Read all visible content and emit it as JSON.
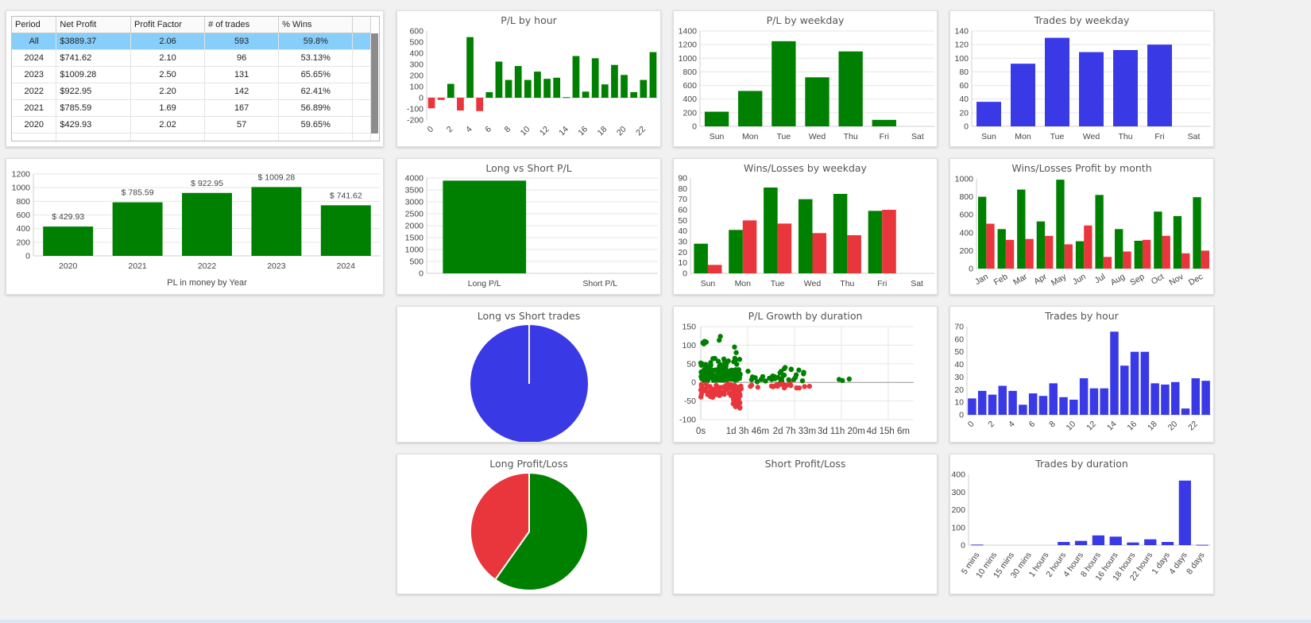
{
  "table": {
    "headers": [
      "Period",
      "Net Profit",
      "Profit Factor",
      "# of trades",
      "% Wins"
    ],
    "rows": [
      [
        "All",
        "$3889.37",
        "2.06",
        "593",
        "59.8%"
      ],
      [
        "2024",
        "$741.62",
        "2.10",
        "96",
        "53.13%"
      ],
      [
        "2023",
        "$1009.28",
        "2.50",
        "131",
        "65.65%"
      ],
      [
        "2022",
        "$922.95",
        "2.20",
        "142",
        "62.41%"
      ],
      [
        "2021",
        "$785.59",
        "1.69",
        "167",
        "56.89%"
      ],
      [
        "2020",
        "$429.93",
        "2.02",
        "57",
        "59.65%"
      ]
    ],
    "selected_row": 0
  },
  "colors": {
    "green": "#008000",
    "red": "#e8363c",
    "blue": "#3939e6",
    "grid": "#e6e6e6",
    "axis": "#cfcfcf"
  },
  "chart_data": [
    {
      "id": "pl_by_hour",
      "type": "bar",
      "title": "P/L by hour",
      "x": [
        0,
        1,
        2,
        3,
        4,
        5,
        6,
        7,
        8,
        9,
        10,
        11,
        12,
        13,
        14,
        15,
        16,
        17,
        18,
        19,
        20,
        21,
        22,
        23
      ],
      "values": [
        -95,
        -20,
        125,
        -115,
        545,
        -120,
        50,
        325,
        160,
        285,
        160,
        235,
        170,
        180,
        5,
        375,
        55,
        355,
        120,
        295,
        205,
        50,
        160,
        410
      ],
      "xticks": [
        "0",
        "2",
        "4",
        "6",
        "8",
        "10",
        "12",
        "14",
        "16",
        "18",
        "20",
        "22"
      ],
      "yticks": [
        600,
        500,
        400,
        300,
        200,
        100,
        0,
        -100,
        -200
      ],
      "ylim": [
        -200,
        600
      ]
    },
    {
      "id": "pl_by_weekday",
      "type": "bar",
      "title": "P/L by weekday",
      "categories": [
        "Sun",
        "Mon",
        "Tue",
        "Wed",
        "Thu",
        "Fri",
        "Sat"
      ],
      "values": [
        215,
        520,
        1250,
        720,
        1100,
        95,
        0
      ],
      "yticks": [
        1400,
        1200,
        1000,
        800,
        600,
        400,
        200,
        0
      ],
      "ylim": [
        0,
        1400
      ]
    },
    {
      "id": "trades_by_weekday",
      "type": "bar",
      "title": "Trades by weekday",
      "categories": [
        "Sun",
        "Mon",
        "Tue",
        "Wed",
        "Thu",
        "Fri",
        "Sat"
      ],
      "values": [
        36,
        92,
        130,
        109,
        112,
        120,
        0
      ],
      "yticks": [
        140,
        120,
        100,
        80,
        60,
        40,
        20,
        0
      ],
      "ylim": [
        0,
        140
      ]
    },
    {
      "id": "pl_by_year",
      "type": "bar",
      "title": "",
      "categories": [
        "2020",
        "2021",
        "2022",
        "2023",
        "2024"
      ],
      "values": [
        429.93,
        785.59,
        922.95,
        1009.28,
        741.62
      ],
      "labels": [
        "$ 429.93",
        "$ 785.59",
        "$ 922.95",
        "$ 1009.28",
        "$ 741.62"
      ],
      "xlabel": "PL in money by Year",
      "yticks": [
        1200,
        1000,
        800,
        600,
        400,
        200,
        0
      ],
      "ylim": [
        0,
        1200
      ]
    },
    {
      "id": "long_vs_short_pl",
      "type": "bar",
      "title": "Long vs Short P/L",
      "categories": [
        "Long P/L",
        "Short P/L"
      ],
      "values": [
        3889.37,
        0
      ],
      "yticks": [
        4000,
        3500,
        3000,
        2500,
        2000,
        1500,
        1000,
        500,
        0
      ],
      "ylim": [
        0,
        4000
      ]
    },
    {
      "id": "wins_losses_weekday",
      "type": "bar",
      "title": "Wins/Losses by weekday",
      "categories": [
        "Sun",
        "Mon",
        "Tue",
        "Wed",
        "Thu",
        "Fri",
        "Sat"
      ],
      "series": [
        {
          "values": [
            28,
            41,
            81,
            70,
            75,
            59,
            0
          ]
        },
        {
          "values": [
            8,
            50,
            47,
            38,
            36,
            60,
            0
          ]
        }
      ],
      "yticks": [
        90,
        80,
        70,
        60,
        50,
        40,
        30,
        20,
        10,
        0
      ],
      "ylim": [
        0,
        90
      ]
    },
    {
      "id": "wins_losses_month",
      "type": "bar",
      "title": "Wins/Losses Profit by month",
      "categories": [
        "Jan",
        "Feb",
        "Mar",
        "Apr",
        "May",
        "Jun",
        "Jul",
        "Aug",
        "Sep",
        "Oct",
        "Nov",
        "Dec"
      ],
      "series": [
        {
          "values": [
            800,
            440,
            880,
            525,
            990,
            305,
            820,
            440,
            310,
            635,
            585,
            795
          ]
        },
        {
          "values": [
            500,
            320,
            330,
            365,
            270,
            480,
            130,
            190,
            320,
            365,
            170,
            200
          ]
        }
      ],
      "yticks": [
        1000,
        800,
        600,
        400,
        200,
        0
      ],
      "ylim": [
        0,
        1000
      ]
    },
    {
      "id": "long_vs_short_trades",
      "type": "pie",
      "title": "Long vs Short trades",
      "slices": [
        {
          "value": 593
        },
        {
          "value": 0
        }
      ]
    },
    {
      "id": "pl_growth_duration",
      "type": "scatter",
      "title": "P/L Growth by duration",
      "xticks": [
        "0s",
        "1d 3h 46m",
        "2d 7h 33m",
        "3d 11h 20m",
        "4d 15h 6m"
      ],
      "yticks": [
        150,
        100,
        50,
        0,
        -50,
        -100
      ],
      "ylim": [
        -100,
        150
      ],
      "xlim_hours": [
        0,
        111.1
      ]
    },
    {
      "id": "trades_by_hour",
      "type": "bar",
      "title": "Trades by hour",
      "x": [
        0,
        1,
        2,
        3,
        4,
        5,
        6,
        7,
        8,
        9,
        10,
        11,
        12,
        13,
        14,
        15,
        16,
        17,
        18,
        19,
        20,
        21,
        22,
        23
      ],
      "values": [
        13,
        19,
        16,
        23,
        19,
        8,
        17,
        15,
        25,
        14,
        12,
        29,
        21,
        21,
        66,
        39,
        50,
        50,
        25,
        24,
        26,
        5,
        29,
        27
      ],
      "xticks": [
        "0",
        "2",
        "4",
        "6",
        "8",
        "10",
        "12",
        "14",
        "16",
        "18",
        "20",
        "22"
      ],
      "yticks": [
        70,
        60,
        50,
        40,
        30,
        20,
        10,
        0
      ],
      "ylim": [
        0,
        70
      ]
    },
    {
      "id": "long_profit_loss",
      "type": "pie",
      "title": "Long Profit/Loss",
      "slices": [
        {
          "value": 59.8
        },
        {
          "value": 40.2
        }
      ]
    },
    {
      "id": "short_profit_loss",
      "type": "pie",
      "title": "Short Profit/Loss",
      "slices": []
    },
    {
      "id": "trades_by_duration",
      "type": "bar",
      "title": "Trades by duration",
      "categories": [
        "5 mins",
        "10 mins",
        "15 mins",
        "30 mins",
        "1 hours",
        "2 hours",
        "4 hours",
        "8 hours",
        "16 hours",
        "18 hours",
        "22 hours",
        "1 days",
        "4 days",
        "8 days"
      ],
      "values": [
        3,
        0,
        0,
        0,
        0,
        18,
        24,
        55,
        48,
        15,
        33,
        18,
        365,
        2
      ],
      "yticks": [
        400,
        300,
        200,
        100,
        0
      ],
      "ylim": [
        0,
        400
      ]
    }
  ]
}
